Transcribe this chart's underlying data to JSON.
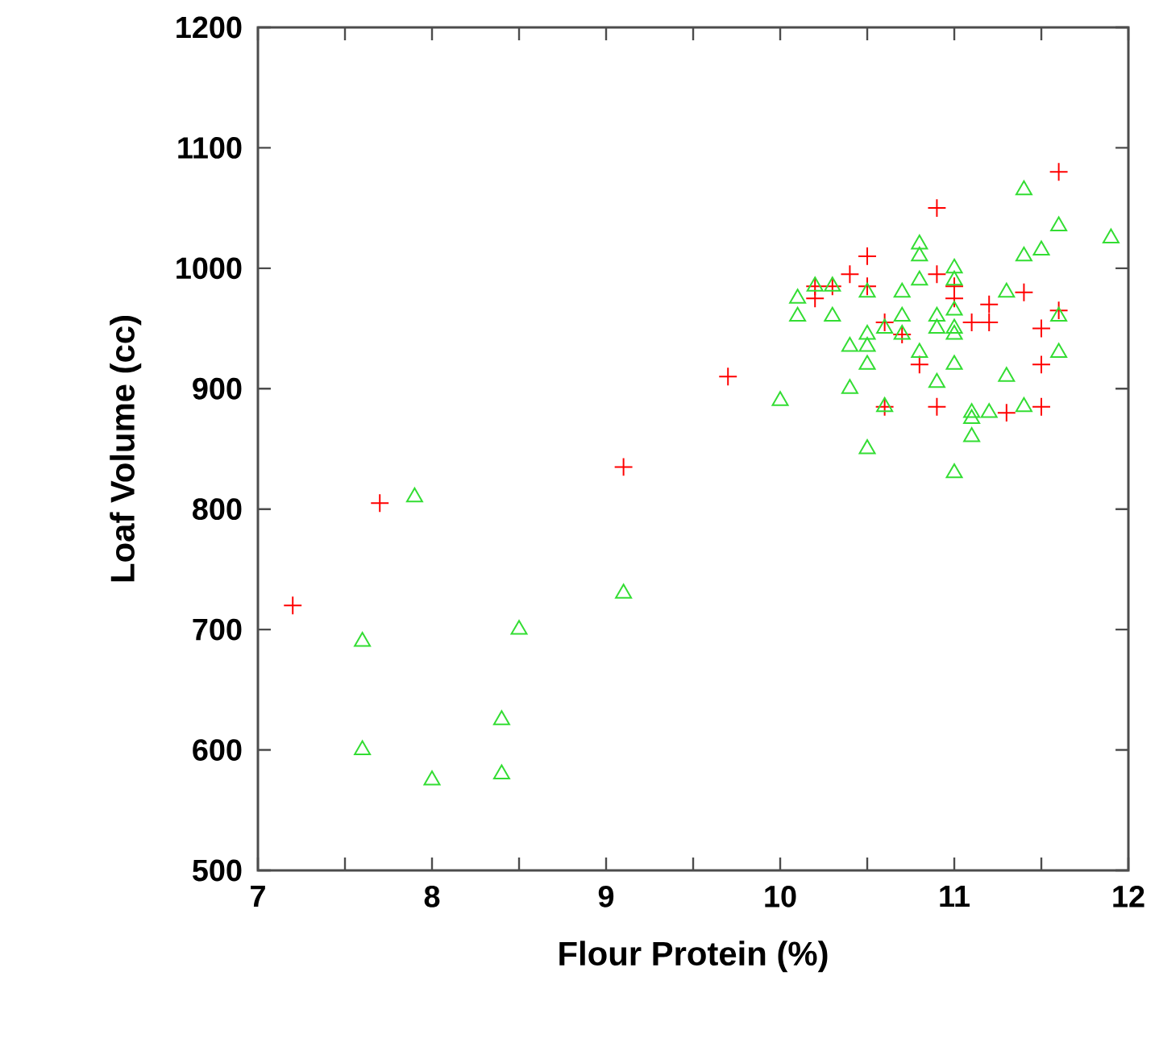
{
  "chart_data": {
    "type": "scatter",
    "xlabel": "Flour Protein (%)",
    "ylabel": "Loaf Volume (cc)",
    "xlim": [
      7,
      12
    ],
    "ylim": [
      500,
      1200
    ],
    "xticks": [
      7,
      {
        "value": 7.5,
        "label": null
      },
      8,
      {
        "value": 8.5,
        "label": null
      },
      9,
      {
        "value": 9.5,
        "label": null
      },
      10,
      {
        "value": 10.5,
        "label": null
      },
      11,
      {
        "value": 11.5,
        "label": null
      },
      12
    ],
    "yticks": [
      500,
      600,
      700,
      800,
      900,
      1000,
      1100,
      1200
    ],
    "series": [
      {
        "color": "#ff0000",
        "marker": "cross",
        "x": [
          7.2,
          7.7,
          9.1,
          9.7,
          10.2,
          10.2,
          10.3,
          10.4,
          10.5,
          10.5,
          10.6,
          10.6,
          10.7,
          10.8,
          10.9,
          10.9,
          10.9,
          11.0,
          11.0,
          11.1,
          11.2,
          11.2,
          11.3,
          11.4,
          11.5,
          11.5,
          11.5,
          11.6,
          11.6
        ],
        "values": [
          720,
          805,
          835,
          910,
          975,
          985,
          985,
          995,
          1010,
          985,
          955,
          885,
          945,
          920,
          1050,
          995,
          885,
          985,
          975,
          955,
          970,
          955,
          880,
          980,
          950,
          920,
          885,
          1080,
          965
        ]
      },
      {
        "color": "#33dd33",
        "marker": "triangle",
        "x": [
          7.6,
          7.6,
          7.9,
          8.0,
          8.4,
          8.4,
          8.5,
          9.1,
          10.0,
          10.1,
          10.1,
          10.2,
          10.3,
          10.3,
          10.4,
          10.4,
          10.5,
          10.5,
          10.5,
          10.5,
          10.5,
          10.6,
          10.6,
          10.7,
          10.7,
          10.7,
          10.8,
          10.8,
          10.8,
          10.8,
          10.9,
          10.9,
          10.9,
          11.0,
          11.0,
          11.0,
          11.0,
          11.0,
          11.0,
          11.0,
          11.1,
          11.1,
          11.1,
          11.2,
          11.3,
          11.3,
          11.4,
          11.4,
          11.4,
          11.5,
          11.6,
          11.6,
          11.6,
          11.9
        ],
        "values": [
          690,
          600,
          810,
          575,
          625,
          580,
          700,
          730,
          890,
          975,
          960,
          985,
          985,
          960,
          935,
          900,
          945,
          935,
          920,
          850,
          980,
          950,
          885,
          980,
          960,
          945,
          1020,
          1010,
          990,
          930,
          960,
          950,
          905,
          1000,
          990,
          965,
          950,
          945,
          920,
          830,
          880,
          875,
          860,
          880,
          980,
          910,
          1065,
          1010,
          885,
          1015,
          1035,
          960,
          930,
          1025
        ]
      }
    ]
  }
}
